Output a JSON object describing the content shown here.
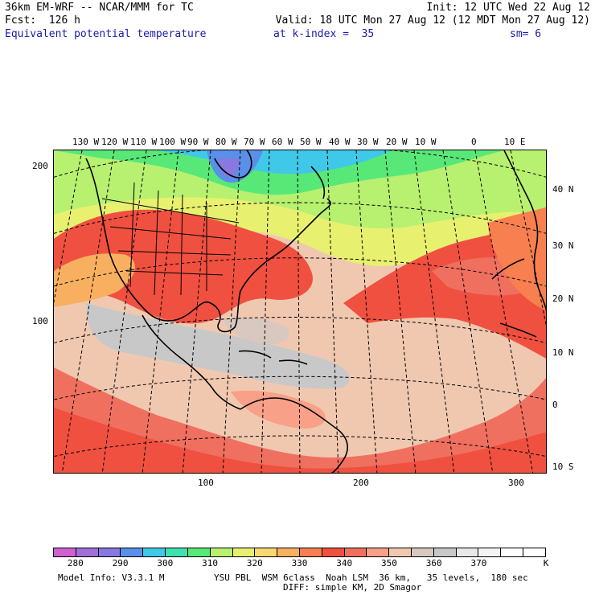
{
  "header": {
    "line1_left": "36km EM-WRF -- NCAR/MMM for TC",
    "line1_right": "Init: 12 UTC Wed 22 Aug 12",
    "line2_left": "Fcst:  126 h",
    "line2_right": "Valid: 18 UTC Mon 27 Aug 12 (12 MDT Mon 27 Aug 12)",
    "line3_field": "Equivalent potential temperature",
    "line3_level": "at k-index =  35",
    "line3_sm": "sm= 6"
  },
  "lon_labels": [
    "130 W",
    "120 W",
    "110 W",
    "100 W",
    "90 W",
    "80 W",
    "70 W",
    "60 W",
    "50 W",
    "40 W",
    "30 W",
    "20 W",
    "10 W",
    "0",
    "10 E"
  ],
  "lat_labels": [
    "40 N",
    "30 N",
    "20 N",
    "10 N",
    "0",
    "10 S"
  ],
  "grid_y_labels": [
    "200",
    "100"
  ],
  "grid_x_labels": [
    "100",
    "200",
    "300"
  ],
  "colorbar": {
    "colors": [
      "#d060d0",
      "#a070d8",
      "#8878e0",
      "#5a90e8",
      "#40c8e8",
      "#40e0b0",
      "#58e878",
      "#b8f070",
      "#e8f070",
      "#f8d870",
      "#f8b060",
      "#f88050",
      "#f05040",
      "#f07060",
      "#f8a088",
      "#f0c8b0",
      "#d8c8c0",
      "#c8c8c8",
      "#e8e8e8",
      "#f4f4f4",
      "#ffffff",
      "#ffffff"
    ],
    "labels": [
      "280",
      "290",
      "300",
      "310",
      "320",
      "330",
      "340",
      "350",
      "360",
      "370",
      "K"
    ]
  },
  "footer": {
    "model_info": "Model Info: V3.3.1 M",
    "physics": "YSU PBL  WSM 6class  Noah LSM  36 km,   35 levels,  180 sec",
    "diff": "DIFF: simple KM, 2D Smagor"
  }
}
